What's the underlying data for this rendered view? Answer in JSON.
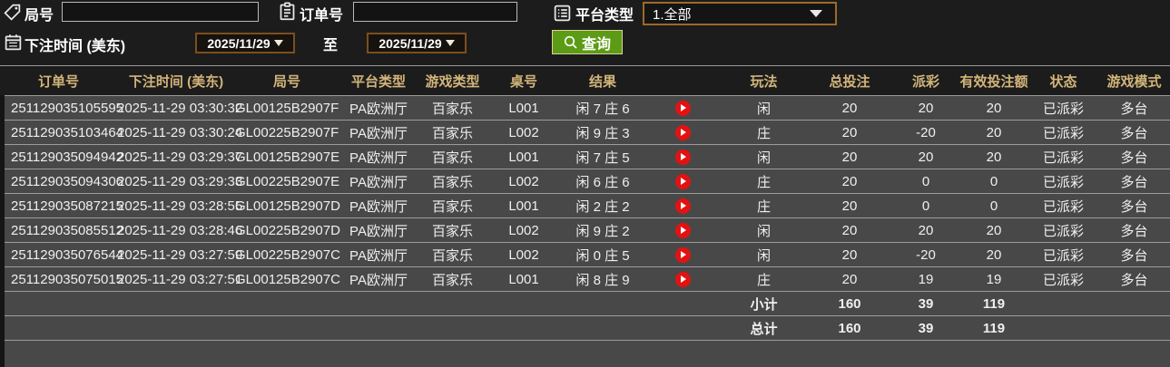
{
  "filters": {
    "round_label": "局号",
    "round_value": "",
    "order_label": "订单号",
    "order_value": "",
    "platform_label": "平台类型",
    "platform_selected": "1.全部",
    "bet_time_label": "下注时间 (美东)",
    "date_from": "2025/11/29",
    "to_label": "至",
    "date_to": "2025/11/29",
    "query_label": "查询"
  },
  "icons": {
    "round": "tag-icon",
    "order": "clipboard-icon",
    "platform": "list-icon",
    "bet_time": "calendar-icon",
    "query": "search-icon",
    "date_picker": "caret-down-icon",
    "select": "caret-down-icon",
    "result_media": "play-icon"
  },
  "table": {
    "headers": [
      "订单号",
      "下注时间 (美东)",
      "局号",
      "平台类型",
      "游戏类型",
      "桌号",
      "结果",
      "玩法",
      "总投注",
      "派彩",
      "有效投注额",
      "状态",
      "游戏模式"
    ],
    "rows": [
      {
        "order": "251129035105595",
        "time": "2025-11-29 03:30:32",
        "round": "GL00125B2907F",
        "platform": "PA欧洲厅",
        "game_type": "百家乐",
        "table_no": "L001",
        "result": "闲 7 庄 6",
        "play": "闲",
        "total": "20",
        "payout": "20",
        "payout_color": "red",
        "valid": "20",
        "status": "已派彩",
        "mode": "多台"
      },
      {
        "order": "251129035103464",
        "time": "2025-11-29 03:30:24",
        "round": "GL00225B2907F",
        "platform": "PA欧洲厅",
        "game_type": "百家乐",
        "table_no": "L002",
        "result": "闲 9 庄 3",
        "play": "庄",
        "total": "20",
        "payout": "-20",
        "payout_color": "green",
        "valid": "20",
        "status": "已派彩",
        "mode": "多台"
      },
      {
        "order": "251129035094942",
        "time": "2025-11-29 03:29:37",
        "round": "GL00125B2907E",
        "platform": "PA欧洲厅",
        "game_type": "百家乐",
        "table_no": "L001",
        "result": "闲 7 庄 5",
        "play": "闲",
        "total": "20",
        "payout": "20",
        "payout_color": "red",
        "valid": "20",
        "status": "已派彩",
        "mode": "多台"
      },
      {
        "order": "251129035094306",
        "time": "2025-11-29 03:29:33",
        "round": "GL00225B2907E",
        "platform": "PA欧洲厅",
        "game_type": "百家乐",
        "table_no": "L002",
        "result": "闲 6 庄 6",
        "play": "庄",
        "total": "20",
        "payout": "0",
        "payout_color": "neutral",
        "valid": "0",
        "status": "已派彩",
        "mode": "多台"
      },
      {
        "order": "251129035087215",
        "time": "2025-11-29 03:28:55",
        "round": "GL00125B2907D",
        "platform": "PA欧洲厅",
        "game_type": "百家乐",
        "table_no": "L001",
        "result": "闲 2 庄 2",
        "play": "庄",
        "total": "20",
        "payout": "0",
        "payout_color": "neutral",
        "valid": "0",
        "status": "已派彩",
        "mode": "多台"
      },
      {
        "order": "251129035085512",
        "time": "2025-11-29 03:28:46",
        "round": "GL00225B2907D",
        "platform": "PA欧洲厅",
        "game_type": "百家乐",
        "table_no": "L002",
        "result": "闲 9 庄 2",
        "play": "闲",
        "total": "20",
        "payout": "20",
        "payout_color": "red",
        "valid": "20",
        "status": "已派彩",
        "mode": "多台"
      },
      {
        "order": "251129035076544",
        "time": "2025-11-29 03:27:59",
        "round": "GL00225B2907C",
        "platform": "PA欧洲厅",
        "game_type": "百家乐",
        "table_no": "L002",
        "result": "闲 0 庄 5",
        "play": "闲",
        "total": "20",
        "payout": "-20",
        "payout_color": "green",
        "valid": "20",
        "status": "已派彩",
        "mode": "多台"
      },
      {
        "order": "251129035075015",
        "time": "2025-11-29 03:27:51",
        "round": "GL00125B2907C",
        "platform": "PA欧洲厅",
        "game_type": "百家乐",
        "table_no": "L001",
        "result": "闲 8 庄 9",
        "play": "庄",
        "total": "20",
        "payout": "19",
        "payout_color": "red",
        "valid": "19",
        "status": "已派彩",
        "mode": "多台"
      }
    ],
    "subtotal": {
      "label": "小计",
      "total": "160",
      "payout": "39",
      "valid": "119"
    },
    "grand_total": {
      "label": "总计",
      "total": "160",
      "payout": "39",
      "valid": "119"
    }
  },
  "colors": {
    "header_text": "#d2b57a",
    "payout_positive": "#c5202a",
    "payout_negative_and_status": "#35cc35",
    "totals_yellow": "#e0e000",
    "query_button_green": "#5c9b15",
    "date_border": "#7d4e1d",
    "row_background": "#484848",
    "panel_background": "#1d1c1c"
  }
}
